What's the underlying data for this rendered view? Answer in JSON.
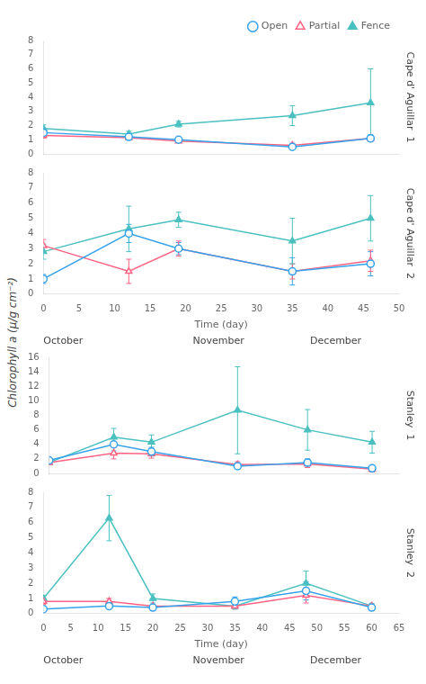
{
  "ylabel": "Chlorophyll a (μ/g cm⁻²)",
  "chart_data": [
    {
      "type": "line",
      "title": "Cape d' Aguillar  1",
      "x": [
        0,
        12,
        19,
        35,
        46
      ],
      "xlim": [
        0,
        50
      ],
      "xticks": [
        0,
        5,
        10,
        15,
        20,
        25,
        30,
        35,
        40,
        45,
        50
      ],
      "ylim": [
        0,
        8
      ],
      "yticks": [
        0,
        1,
        2,
        3,
        4,
        5,
        6,
        7,
        8
      ],
      "grid": false,
      "tick_labels": "y",
      "legend": "upper right",
      "series": [
        {
          "name": "Open",
          "color": "#36a2eb",
          "marker": "open_circle",
          "line_style": "solid",
          "values": [
            1.5,
            1.2,
            1.0,
            0.5,
            1.1
          ],
          "yerr": [
            0.2,
            0.15,
            0.15,
            0.15,
            0.25
          ]
        },
        {
          "name": "Partial",
          "color": "#ff6384",
          "marker": "open_triangle",
          "line_style": "solid",
          "values": [
            1.3,
            1.15,
            0.9,
            0.6,
            1.1
          ],
          "yerr": [
            0.2,
            0.15,
            0.1,
            0.15,
            0.2
          ]
        },
        {
          "name": "Fence",
          "color": "#4bc0c0",
          "marker": "filled_triangle",
          "line_style": "solid",
          "values": [
            1.8,
            1.4,
            2.1,
            2.7,
            3.6
          ],
          "yerr": [
            0.25,
            0.2,
            0.2,
            0.7,
            2.4
          ]
        }
      ]
    },
    {
      "type": "line",
      "title": "Cape d' Aguillar  2",
      "xlabel": "Time (day)",
      "annotations": [
        "October",
        "November",
        "December"
      ],
      "x": [
        0,
        12,
        19,
        35,
        46
      ],
      "xlim": [
        0,
        50
      ],
      "xticks": [
        0,
        5,
        10,
        15,
        20,
        25,
        30,
        35,
        40,
        45,
        50
      ],
      "ylim": [
        0,
        8
      ],
      "yticks": [
        0,
        1,
        2,
        3,
        4,
        5,
        6,
        7,
        8
      ],
      "grid": false,
      "series": [
        {
          "name": "Open",
          "color": "#36a2eb",
          "marker": "open_circle",
          "line_style": "solid",
          "values": [
            1.0,
            4.0,
            3.0,
            1.5,
            2.0
          ],
          "yerr": [
            0.3,
            0.6,
            0.4,
            0.9,
            0.8
          ]
        },
        {
          "name": "Partial",
          "color": "#ff6384",
          "marker": "open_triangle",
          "line_style": "solid",
          "values": [
            3.2,
            1.5,
            3.0,
            1.5,
            2.2
          ],
          "yerr": [
            0.4,
            0.8,
            0.5,
            0.5,
            0.7
          ]
        },
        {
          "name": "Fence",
          "color": "#4bc0c0",
          "marker": "filled_triangle",
          "line_style": "solid",
          "values": [
            2.8,
            4.3,
            4.9,
            3.5,
            5.0
          ],
          "yerr": [
            0.5,
            1.5,
            0.5,
            1.5,
            1.5
          ]
        }
      ]
    },
    {
      "type": "line",
      "title": "Stanley  1",
      "x": [
        0,
        12,
        19,
        35,
        48,
        60
      ],
      "xlim": [
        0,
        65
      ],
      "xticks": [
        0,
        5,
        10,
        15,
        20,
        25,
        30,
        35,
        40,
        45,
        50,
        55,
        60,
        65
      ],
      "ylim": [
        0,
        16
      ],
      "yticks": [
        0,
        2,
        4,
        6,
        8,
        10,
        12,
        14,
        16
      ],
      "grid": false,
      "tick_labels": "y",
      "series": [
        {
          "name": "Open",
          "color": "#36a2eb",
          "marker": "open_circle",
          "line_style": "solid",
          "values": [
            1.8,
            4.0,
            3.0,
            1.0,
            1.5,
            0.7
          ],
          "yerr": [
            0.3,
            0.9,
            0.6,
            0.4,
            0.5,
            0.4
          ]
        },
        {
          "name": "Partial",
          "color": "#ff6384",
          "marker": "open_triangle",
          "line_style": "solid",
          "values": [
            1.5,
            2.8,
            2.7,
            1.2,
            1.3,
            0.6
          ],
          "yerr": [
            0.3,
            0.8,
            0.6,
            0.4,
            0.5,
            0.4
          ]
        },
        {
          "name": "Fence",
          "color": "#4bc0c0",
          "marker": "filled_triangle",
          "line_style": "solid",
          "values": [
            1.5,
            5.0,
            4.3,
            8.7,
            6.0,
            4.3
          ],
          "yerr": [
            0.3,
            1.2,
            1.0,
            6.0,
            2.8,
            1.5
          ]
        }
      ]
    },
    {
      "type": "line",
      "title": "Stanley  2",
      "xlabel": "Time (day)",
      "annotations": [
        "October",
        "November",
        "December"
      ],
      "x": [
        0,
        12,
        20,
        35,
        48,
        60
      ],
      "xlim": [
        0,
        65
      ],
      "xticks": [
        0,
        5,
        10,
        15,
        20,
        25,
        30,
        35,
        40,
        45,
        50,
        55,
        60,
        65
      ],
      "ylim": [
        0,
        8
      ],
      "yticks": [
        0,
        1,
        2,
        3,
        4,
        5,
        6,
        7,
        8
      ],
      "grid": false,
      "series": [
        {
          "name": "Open",
          "color": "#36a2eb",
          "marker": "open_circle",
          "line_style": "solid",
          "values": [
            0.3,
            0.5,
            0.4,
            0.8,
            1.5,
            0.4
          ],
          "yerr": [
            0.1,
            0.2,
            0.1,
            0.3,
            0.6,
            0.15
          ]
        },
        {
          "name": "Partial",
          "color": "#ff6384",
          "marker": "open_triangle",
          "line_style": "solid",
          "values": [
            0.8,
            0.8,
            0.5,
            0.5,
            1.2,
            0.5
          ],
          "yerr": [
            0.2,
            0.2,
            0.1,
            0.2,
            0.5,
            0.15
          ]
        },
        {
          "name": "Fence",
          "color": "#4bc0c0",
          "marker": "filled_triangle",
          "line_style": "solid",
          "values": [
            1.0,
            6.3,
            1.0,
            0.5,
            2.0,
            0.5
          ],
          "yerr": [
            0.2,
            1.5,
            0.3,
            0.2,
            0.8,
            0.15
          ]
        }
      ]
    }
  ]
}
